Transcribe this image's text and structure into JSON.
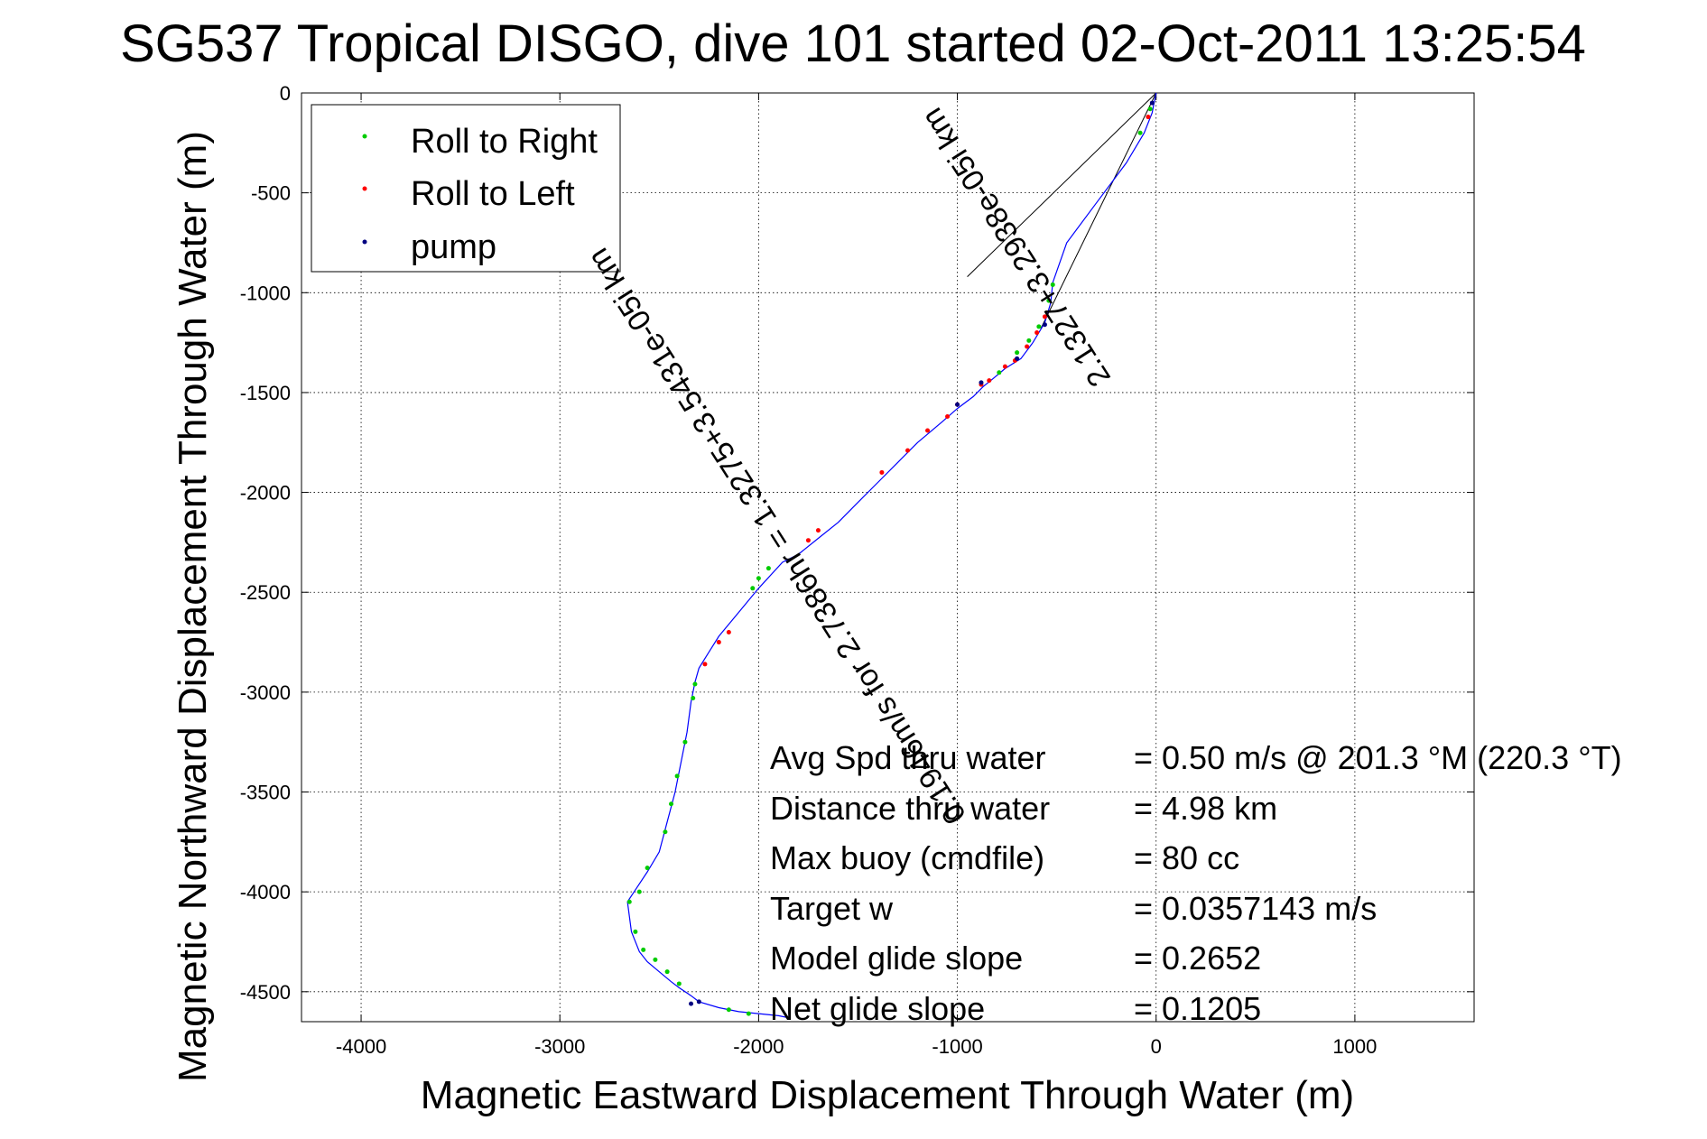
{
  "chart_data": {
    "type": "scatter",
    "title": "SG537 Tropical DISGO, dive 101 started 02-Oct-2011 13:25:54",
    "xlabel": "Magnetic Eastward Displacement Through Water (m)",
    "ylabel": "Magnetic Northward Displacement Through Water (m)",
    "xlim": [
      -4300,
      1600
    ],
    "ylim": [
      -4650,
      0
    ],
    "xticks": [
      -4000,
      -3000,
      -2000,
      -1000,
      0,
      1000
    ],
    "yticks": [
      0,
      -500,
      -1000,
      -1500,
      -2000,
      -2500,
      -3000,
      -3500,
      -4000,
      -4500
    ],
    "xtick_labels": [
      "-4000",
      "-3000",
      "-2000",
      "-1000",
      "0",
      "1000"
    ],
    "ytick_labels": [
      "0",
      "-500",
      "-1000",
      "-1500",
      "-2000",
      "-2500",
      "-3000",
      "-3500",
      "-4000",
      "-4500"
    ],
    "grid": true,
    "legend_position": "top-left",
    "colors": {
      "track": "#0000ff",
      "roll_right": "#00cc00",
      "roll_left": "#ff0000",
      "pump": "#000080",
      "guide_lines": "#000000"
    },
    "track": {
      "x": [
        0,
        -20,
        -60,
        -150,
        -300,
        -450,
        -520,
        -530,
        -560,
        -620,
        -680,
        -760,
        -820,
        -870,
        -920,
        -1000,
        -1080,
        -1200,
        -1300,
        -1400,
        -1500,
        -1600,
        -1700,
        -1800,
        -1880,
        -2000,
        -2100,
        -2200,
        -2250,
        -2300,
        -2320,
        -2340,
        -2360,
        -2390,
        -2420,
        -2460,
        -2500,
        -2560,
        -2620,
        -2660,
        -2640,
        -2600,
        -2560,
        -2500,
        -2440,
        -2400,
        -2340,
        -2300,
        -2200,
        -2100,
        -2000,
        -1900,
        -1850
      ],
      "y": [
        0,
        -100,
        -200,
        -350,
        -550,
        -750,
        -950,
        -1050,
        -1150,
        -1250,
        -1330,
        -1380,
        -1430,
        -1470,
        -1520,
        -1580,
        -1650,
        -1750,
        -1850,
        -1950,
        -2050,
        -2150,
        -2230,
        -2310,
        -2350,
        -2480,
        -2600,
        -2720,
        -2800,
        -2880,
        -2950,
        -3050,
        -3200,
        -3350,
        -3500,
        -3650,
        -3800,
        -3900,
        -3990,
        -4050,
        -4200,
        -4300,
        -4350,
        -4400,
        -4450,
        -4480,
        -4520,
        -4550,
        -4580,
        -4600,
        -4610,
        -4620,
        -4630
      ]
    },
    "series": [
      {
        "name": "Roll to Right",
        "x": [
          -30,
          -80,
          -520,
          -540,
          -590,
          -640,
          -700,
          -790,
          -1950,
          -2000,
          -2030,
          -2320,
          -2330,
          -2370,
          -2410,
          -2440,
          -2470,
          -2560,
          -2600,
          -2650,
          -2620,
          -2580,
          -2520,
          -2460,
          -2400,
          -2150,
          -2050
        ],
        "y": [
          -80,
          -200,
          -960,
          -1040,
          -1170,
          -1240,
          -1300,
          -1400,
          -2380,
          -2430,
          -2480,
          -2960,
          -3030,
          -3250,
          -3420,
          -3560,
          -3700,
          -3880,
          -4000,
          -4050,
          -4200,
          -4290,
          -4340,
          -4400,
          -4460,
          -4590,
          -4610
        ]
      },
      {
        "name": "Roll to Left",
        "x": [
          -40,
          -560,
          -600,
          -650,
          -710,
          -760,
          -840,
          -880,
          -1000,
          -1050,
          -1150,
          -1250,
          -1380,
          -1700,
          -1750,
          -2150,
          -2200,
          -2270
        ],
        "y": [
          -120,
          -1120,
          -1200,
          -1270,
          -1340,
          -1370,
          -1440,
          -1460,
          -1560,
          -1620,
          -1690,
          -1790,
          -1900,
          -2190,
          -2240,
          -2700,
          -2750,
          -2860
        ],
        "display": "line"
      },
      {
        "name": "pump",
        "x": [
          -20,
          -560,
          -700,
          -880,
          -1000,
          -2300,
          -2340
        ],
        "y": [
          -50,
          -1160,
          -1330,
          -1450,
          -1560,
          -4550,
          -4560
        ]
      }
    ],
    "annotations": {
      "diagonal_text": "0.1946m/s for 2.7386hr = 1.3275+3.5431e-05i km",
      "partial_text": "2.1327+3.2938e-05i km"
    },
    "stats": [
      {
        "label": "Avg Spd thru water",
        "value": "=  0.50 m/s @ 201.3 °M (220.3 °T)"
      },
      {
        "label": "Distance thru water",
        "value": "=  4.98 km"
      },
      {
        "label": "Max buoy (cmdfile)",
        "value": "= 80 cc"
      },
      {
        "label": "Target w",
        "value": "= 0.0357143 m/s"
      },
      {
        "label": "Model glide slope",
        "value": "= 0.2652"
      },
      {
        "label": "Net glide slope",
        "value": "= 0.1205"
      }
    ]
  }
}
